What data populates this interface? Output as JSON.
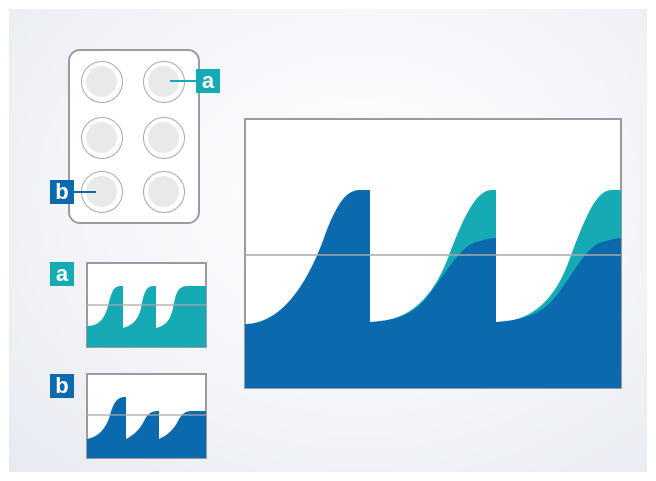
{
  "labels": {
    "a": "a",
    "b": "b"
  },
  "wells": [
    {
      "id": "well-1",
      "label": ""
    },
    {
      "id": "well-2",
      "label": "a"
    },
    {
      "id": "well-3",
      "label": ""
    },
    {
      "id": "well-4",
      "label": ""
    },
    {
      "id": "well-5",
      "label": "b"
    },
    {
      "id": "well-6",
      "label": ""
    }
  ],
  "colors": {
    "well_a": "#16aab5",
    "well_b": "#0b6aad",
    "frame": "#9b9b9b",
    "baseline": "#a8a8a8"
  }
}
